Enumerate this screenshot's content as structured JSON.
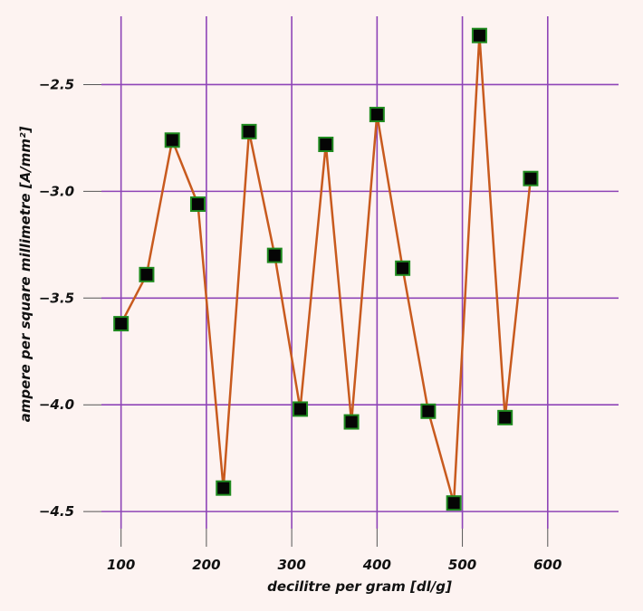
{
  "chart_data": {
    "type": "line",
    "title": "",
    "xlabel": "decilitre per gram [dl/g]",
    "ylabel": "ampere per square millimetre [A/mm²]",
    "xlim": [
      77,
      683
    ],
    "ylim": [
      -4.58,
      -2.18
    ],
    "x_ticks": [
      100,
      200,
      300,
      400,
      500,
      600
    ],
    "x_tick_labels": [
      "100",
      "200",
      "300",
      "400",
      "500",
      "600"
    ],
    "y_ticks": [
      -4.5,
      -4.0,
      -3.5,
      -3.0,
      -2.5
    ],
    "y_tick_labels": [
      "−4.5",
      "−4.0",
      "−3.5",
      "−3.0",
      "−2.5"
    ],
    "grid": true,
    "colors": {
      "background": "#fdf3f1",
      "grid": "#8e44b7",
      "line": "#c85a1e",
      "marker_fill": "#050505",
      "marker_edge": "#1f8a1f"
    },
    "series": [
      {
        "x": [
          100,
          130,
          160,
          190,
          220,
          250,
          280,
          310,
          340,
          370,
          400,
          430,
          460,
          490,
          520,
          550,
          580
        ],
        "y": [
          -3.62,
          -3.39,
          -2.76,
          -3.06,
          -4.39,
          -2.72,
          -3.3,
          -4.02,
          -2.78,
          -4.08,
          -2.64,
          -3.36,
          -4.03,
          -4.46,
          -2.27,
          -4.06,
          -2.94
        ]
      }
    ]
  }
}
